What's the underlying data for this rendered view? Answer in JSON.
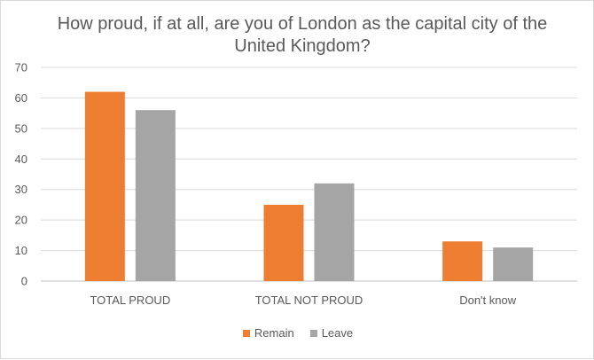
{
  "chart_data": {
    "type": "bar",
    "title": "How proud, if at all, are you of London as the capital city of the United Kingdom?",
    "categories": [
      "TOTAL PROUD",
      "TOTAL NOT PROUD",
      "Don't know"
    ],
    "series": [
      {
        "name": "Remain",
        "color": "#ED7D31",
        "values": [
          62,
          25,
          13
        ]
      },
      {
        "name": "Leave",
        "color": "#A5A5A5",
        "values": [
          56,
          32,
          11
        ]
      }
    ],
    "ylim": [
      0,
      70
    ],
    "yticks": [
      "0",
      "10",
      "20",
      "30",
      "40",
      "50",
      "60",
      "70"
    ],
    "grid": true,
    "legend_position": "bottom"
  }
}
